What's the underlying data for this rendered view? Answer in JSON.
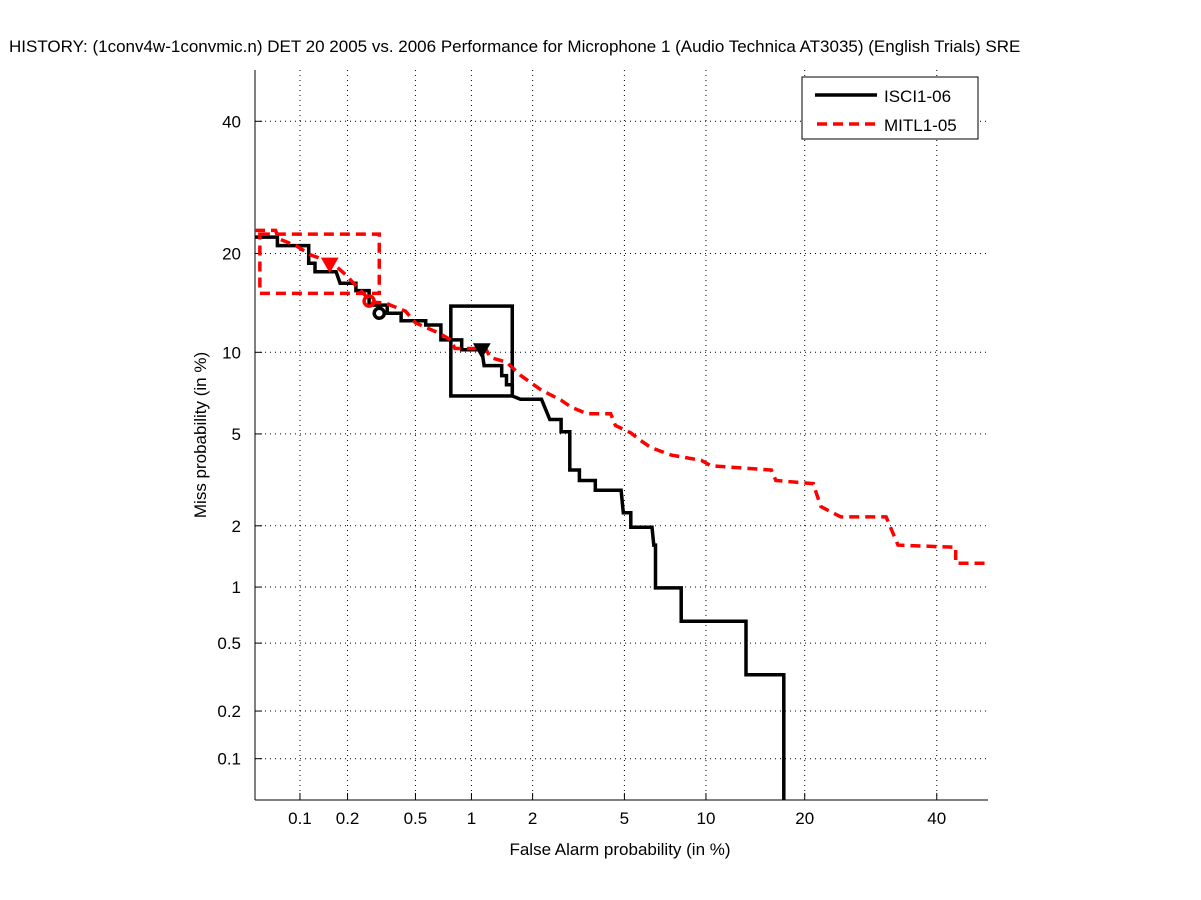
{
  "chart_data": {
    "type": "line",
    "subtype": "DET curve (normal-deviate / probit scale)",
    "title": "HISTORY: (1conv4w-1convmic.n) DET 20 2005 vs. 2006 Performance for Microphone 1 (Audio Technica AT3035) (English Trials) SRE",
    "xlabel": "False Alarm probability (in %)",
    "ylabel": "Miss probability (in %)",
    "xscale": "probit",
    "yscale": "probit",
    "xlim": [
      0.05,
      49
    ],
    "ylim": [
      0.053,
      49
    ],
    "grid": true,
    "grid_style": "dotted",
    "xticks": [
      0.1,
      0.2,
      0.5,
      1,
      2,
      5,
      10,
      20,
      40
    ],
    "xtick_labels": [
      "0.1",
      "0.2",
      "0.5",
      "1",
      "2",
      "5",
      "10",
      "20",
      "40"
    ],
    "yticks": [
      0.1,
      0.2,
      0.5,
      1,
      2,
      5,
      10,
      20,
      40
    ],
    "ytick_labels": [
      "0.1",
      "0.2",
      "0.5",
      "1",
      "2",
      "5",
      "10",
      "20",
      "40"
    ],
    "legend": {
      "placement": "top-right",
      "entries": [
        {
          "label": "ISCI1-06",
          "color": "#000000",
          "style": "solid"
        },
        {
          "label": "MITL1-05",
          "color": "#ff0000",
          "style": "dashed"
        }
      ]
    },
    "series": [
      {
        "name": "ISCI1-06",
        "color": "#000000",
        "style": "solid",
        "points": [
          [
            0.05,
            22.1
          ],
          [
            0.071,
            22.1
          ],
          [
            0.071,
            21.0
          ],
          [
            0.114,
            21.0
          ],
          [
            0.114,
            18.8
          ],
          [
            0.125,
            18.8
          ],
          [
            0.125,
            17.8
          ],
          [
            0.17,
            17.8
          ],
          [
            0.18,
            16.5
          ],
          [
            0.225,
            16.5
          ],
          [
            0.225,
            15.7
          ],
          [
            0.27,
            15.7
          ],
          [
            0.27,
            14.2
          ],
          [
            0.345,
            14.2
          ],
          [
            0.345,
            13.4
          ],
          [
            0.415,
            13.4
          ],
          [
            0.415,
            12.7
          ],
          [
            0.57,
            12.7
          ],
          [
            0.57,
            12.3
          ],
          [
            0.69,
            12.3
          ],
          [
            0.69,
            11.0
          ],
          [
            0.89,
            11.0
          ],
          [
            0.89,
            10.2
          ],
          [
            1.13,
            10.2
          ],
          [
            1.16,
            9.0
          ],
          [
            1.42,
            9.0
          ],
          [
            1.42,
            8.3
          ],
          [
            1.5,
            8.3
          ],
          [
            1.5,
            7.7
          ],
          [
            1.6,
            7.7
          ],
          [
            1.6,
            7.0
          ],
          [
            1.75,
            6.8
          ],
          [
            2.2,
            6.8
          ],
          [
            2.4,
            5.7
          ],
          [
            2.7,
            5.7
          ],
          [
            2.7,
            5.1
          ],
          [
            2.95,
            5.1
          ],
          [
            2.95,
            3.55
          ],
          [
            3.25,
            3.55
          ],
          [
            3.25,
            3.2
          ],
          [
            3.8,
            3.2
          ],
          [
            3.8,
            2.9
          ],
          [
            4.85,
            2.9
          ],
          [
            4.95,
            2.3
          ],
          [
            5.3,
            2.3
          ],
          [
            5.3,
            1.97
          ],
          [
            6.4,
            1.97
          ],
          [
            6.5,
            1.62
          ],
          [
            6.6,
            1.62
          ],
          [
            6.6,
            0.99
          ],
          [
            8.2,
            0.99
          ],
          [
            8.2,
            0.66
          ],
          [
            13.5,
            0.66
          ],
          [
            13.5,
            0.33
          ],
          [
            17.5,
            0.33
          ],
          [
            17.5,
            0.053
          ]
        ],
        "markers": [
          {
            "type": "circle",
            "x": 0.31,
            "y": 13.4
          },
          {
            "type": "triangle-down",
            "x": 1.13,
            "y": 10.2
          }
        ],
        "box": {
          "x": [
            0.78,
            1.6
          ],
          "y": [
            7.0,
            14.1
          ],
          "style": "solid"
        }
      },
      {
        "name": "MITL1-05",
        "color": "#ff0000",
        "style": "dashed",
        "points": [
          [
            0.05,
            23.0
          ],
          [
            0.069,
            23.0
          ],
          [
            0.072,
            21.9
          ],
          [
            0.094,
            21.0
          ],
          [
            0.118,
            19.8
          ],
          [
            0.16,
            18.9
          ],
          [
            0.196,
            17.4
          ],
          [
            0.24,
            15.7
          ],
          [
            0.28,
            14.5
          ],
          [
            0.34,
            14.4
          ],
          [
            0.36,
            14.2
          ],
          [
            0.44,
            13.6
          ],
          [
            0.5,
            12.5
          ],
          [
            0.67,
            11.6
          ],
          [
            0.78,
            11.0
          ],
          [
            0.82,
            10.3
          ],
          [
            1.18,
            10.3
          ],
          [
            1.25,
            9.6
          ],
          [
            1.5,
            9.25
          ],
          [
            1.76,
            8.3
          ],
          [
            2.2,
            7.35
          ],
          [
            2.7,
            6.75
          ],
          [
            3.0,
            6.35
          ],
          [
            3.5,
            6.0
          ],
          [
            4.4,
            6.0
          ],
          [
            4.6,
            5.4
          ],
          [
            5.3,
            5.05
          ],
          [
            5.8,
            4.7
          ],
          [
            6.35,
            4.4
          ],
          [
            7.55,
            4.1
          ],
          [
            9.65,
            3.9
          ],
          [
            10.4,
            3.7
          ],
          [
            16.1,
            3.55
          ],
          [
            16.6,
            3.2
          ],
          [
            21.1,
            3.1
          ],
          [
            21.5,
            2.8
          ],
          [
            22.1,
            2.45
          ],
          [
            24.8,
            2.2
          ],
          [
            31.6,
            2.2
          ],
          [
            33.5,
            1.62
          ],
          [
            43.3,
            1.58
          ],
          [
            43.3,
            1.32
          ],
          [
            49,
            1.32
          ]
        ],
        "markers": [
          {
            "type": "triangle-down",
            "x": 0.155,
            "y": 18.7
          },
          {
            "type": "circle",
            "x": 0.27,
            "y": 14.6
          }
        ],
        "box": {
          "x": [
            0.054,
            0.31
          ],
          "y": [
            15.4,
            22.5
          ],
          "style": "dashed"
        }
      }
    ]
  }
}
